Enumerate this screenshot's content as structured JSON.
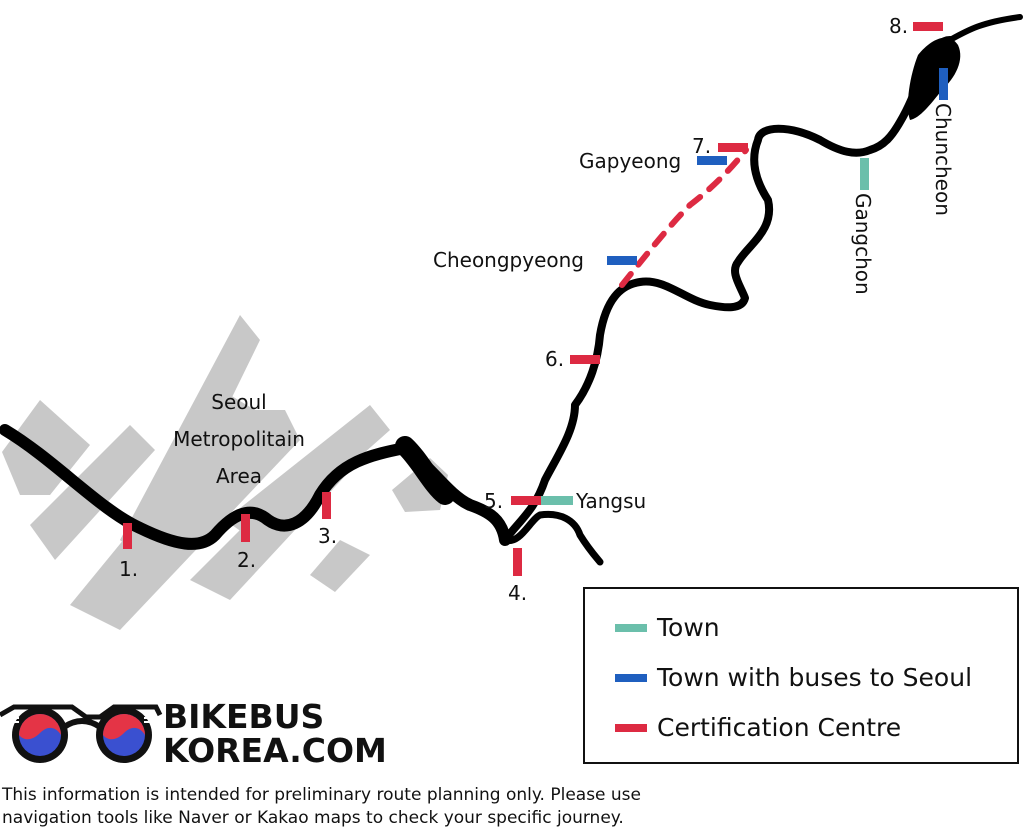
{
  "region_label": [
    "Seoul",
    "Metropolitain",
    "Area"
  ],
  "colors": {
    "town": "#6bbfab",
    "town_with_bus": "#1f5fbf",
    "certification": "#dd2a42",
    "route": "#000000",
    "urban_area": "#c8c8c8"
  },
  "markers": [
    {
      "label": "1.",
      "type": "certification"
    },
    {
      "label": "2.",
      "type": "certification"
    },
    {
      "label": "3.",
      "type": "certification"
    },
    {
      "label": "4.",
      "type": "certification"
    },
    {
      "label": "5.",
      "type": "certification"
    },
    {
      "label": "Yangsu",
      "type": "town"
    },
    {
      "label": "6.",
      "type": "certification"
    },
    {
      "label": "Cheongpyeong",
      "type": "town_with_bus"
    },
    {
      "label": "Gapyeong",
      "type": "town_with_bus"
    },
    {
      "label": "7.",
      "type": "certification"
    },
    {
      "label": "Gangchon",
      "type": "town"
    },
    {
      "label": "Chuncheon",
      "type": "town_with_bus"
    },
    {
      "label": "8.",
      "type": "certification"
    }
  ],
  "legend": {
    "items": [
      {
        "label": "Town",
        "type": "town"
      },
      {
        "label": "Town with buses to Seoul",
        "type": "town_with_bus"
      },
      {
        "label": "Certification Centre",
        "type": "certification"
      }
    ]
  },
  "logo": {
    "line1": "BIKEBUS",
    "line2": "KOREA.COM"
  },
  "disclaimer": {
    "line1": "This information is intended for preliminary route planning only. Please use",
    "line2": "navigation tools like Naver or Kakao maps to check your specific journey."
  }
}
